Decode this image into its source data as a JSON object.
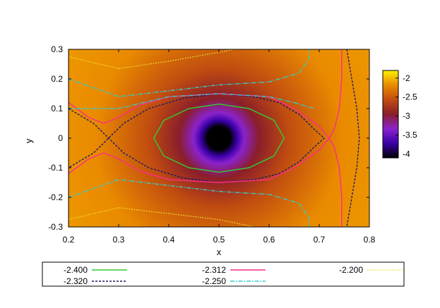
{
  "chart_data": {
    "type": "heatmap",
    "title": "",
    "xlabel": "x",
    "ylabel": "y",
    "xlim": [
      0.2,
      0.8
    ],
    "ylim": [
      -0.3,
      0.3
    ],
    "x_ticks": [
      "0.2",
      "0.3",
      "0.4",
      "0.5",
      "0.6",
      "0.7",
      "0.8"
    ],
    "y_ticks": [
      "0.3",
      "0.2",
      "0.1",
      "0",
      "-0.1",
      "-0.2",
      "-0.3"
    ],
    "colorbar": {
      "range": [
        -4.1,
        -1.8
      ],
      "ticks": [
        "-2",
        "-2.5",
        "-3",
        "-3.5",
        "-4"
      ],
      "colors": [
        "#fff200",
        "#e98a00",
        "#c04c10",
        "#8a1e2a",
        "#8a22cc",
        "#3a00a8",
        "#000000"
      ]
    },
    "field_center": {
      "x": 0.5,
      "y": 0.0
    },
    "legend": {
      "placement": "below",
      "entries": [
        {
          "label": "-2.400",
          "color": "#33cc33",
          "style": "solid"
        },
        {
          "label": "-2.320",
          "color": "#1a1a66",
          "style": "dashed"
        },
        {
          "label": "-2.312",
          "color": "#ff2d88",
          "style": "solid"
        },
        {
          "label": "-2.250",
          "color": "#2fd0cc",
          "style": "dash-dot"
        },
        {
          "label": "-2.200",
          "color": "#f2e22e",
          "style": "dotted"
        }
      ]
    },
    "series": [
      {
        "name": "-2.400",
        "closed": true,
        "points": [
          [
            0.37,
            0.0
          ],
          [
            0.39,
            0.06
          ],
          [
            0.44,
            0.1
          ],
          [
            0.5,
            0.115
          ],
          [
            0.56,
            0.1
          ],
          [
            0.61,
            0.06
          ],
          [
            0.63,
            0.0
          ],
          [
            0.61,
            -0.06
          ],
          [
            0.56,
            -0.1
          ],
          [
            0.5,
            -0.115
          ],
          [
            0.44,
            -0.1
          ],
          [
            0.39,
            -0.06
          ]
        ]
      },
      {
        "name": "-2.320",
        "closed": false,
        "points": [
          [
            0.2,
            0.1
          ],
          [
            0.25,
            0.05
          ],
          [
            0.28,
            0.0
          ],
          [
            0.31,
            -0.05
          ],
          [
            0.36,
            -0.1
          ],
          [
            0.43,
            -0.135
          ],
          [
            0.5,
            -0.15
          ],
          [
            0.57,
            -0.14
          ],
          [
            0.62,
            -0.12
          ],
          [
            0.66,
            -0.08
          ],
          [
            0.69,
            -0.03
          ],
          [
            0.71,
            0.0
          ],
          [
            0.69,
            0.03
          ],
          [
            0.66,
            0.08
          ],
          [
            0.62,
            0.12
          ],
          [
            0.57,
            0.14
          ],
          [
            0.5,
            0.15
          ],
          [
            0.43,
            0.135
          ],
          [
            0.36,
            0.1
          ],
          [
            0.31,
            0.05
          ],
          [
            0.28,
            0.0
          ],
          [
            0.25,
            -0.05
          ],
          [
            0.2,
            -0.1
          ]
        ]
      },
      {
        "name": "-2.320",
        "closed": false,
        "points": [
          [
            0.755,
            0.3
          ],
          [
            0.765,
            0.2
          ],
          [
            0.775,
            0.1
          ],
          [
            0.78,
            0.0
          ],
          [
            0.775,
            -0.1
          ],
          [
            0.765,
            -0.2
          ],
          [
            0.755,
            -0.3
          ]
        ]
      },
      {
        "name": "-2.312",
        "closed": false,
        "points": [
          [
            0.2,
            0.12
          ],
          [
            0.24,
            0.07
          ],
          [
            0.27,
            0.05
          ],
          [
            0.3,
            0.07
          ],
          [
            0.34,
            0.11
          ],
          [
            0.4,
            0.14
          ],
          [
            0.5,
            0.15
          ],
          [
            0.6,
            0.14
          ],
          [
            0.65,
            0.1
          ],
          [
            0.7,
            0.04
          ],
          [
            0.72,
            0.0
          ],
          [
            0.7,
            -0.04
          ],
          [
            0.65,
            -0.1
          ],
          [
            0.6,
            -0.14
          ],
          [
            0.5,
            -0.15
          ],
          [
            0.4,
            -0.14
          ],
          [
            0.34,
            -0.11
          ],
          [
            0.3,
            -0.07
          ],
          [
            0.27,
            -0.05
          ],
          [
            0.24,
            -0.07
          ],
          [
            0.2,
            -0.12
          ]
        ]
      },
      {
        "name": "-2.312",
        "closed": false,
        "points": [
          [
            0.745,
            0.3
          ],
          [
            0.745,
            0.2
          ],
          [
            0.74,
            0.1
          ],
          [
            0.73,
            0.03
          ],
          [
            0.72,
            0.0
          ],
          [
            0.73,
            -0.03
          ],
          [
            0.74,
            -0.1
          ],
          [
            0.745,
            -0.2
          ],
          [
            0.745,
            -0.3
          ]
        ]
      },
      {
        "name": "-2.250",
        "closed": false,
        "points": [
          [
            0.2,
            0.1
          ],
          [
            0.25,
            0.1
          ],
          [
            0.3,
            0.1
          ],
          [
            0.35,
            0.12
          ],
          [
            0.4,
            0.14
          ],
          [
            0.5,
            0.15
          ],
          [
            0.6,
            0.14
          ],
          [
            0.65,
            0.12
          ],
          [
            0.69,
            0.1
          ]
        ]
      },
      {
        "name": "-2.250",
        "closed": false,
        "points": [
          [
            0.2,
            0.2
          ],
          [
            0.25,
            0.17
          ],
          [
            0.3,
            0.14
          ],
          [
            0.4,
            0.16
          ],
          [
            0.5,
            0.18
          ],
          [
            0.6,
            0.19
          ],
          [
            0.66,
            0.22
          ],
          [
            0.68,
            0.27
          ],
          [
            0.68,
            0.3
          ]
        ]
      },
      {
        "name": "-2.250",
        "closed": false,
        "points": [
          [
            0.2,
            -0.2
          ],
          [
            0.25,
            -0.17
          ],
          [
            0.3,
            -0.14
          ],
          [
            0.4,
            -0.16
          ],
          [
            0.5,
            -0.18
          ],
          [
            0.6,
            -0.19
          ],
          [
            0.66,
            -0.22
          ],
          [
            0.68,
            -0.27
          ],
          [
            0.68,
            -0.3
          ]
        ]
      },
      {
        "name": "-2.200",
        "closed": false,
        "points": [
          [
            0.2,
            0.275
          ],
          [
            0.3,
            0.235
          ],
          [
            0.4,
            0.26
          ],
          [
            0.5,
            0.29
          ],
          [
            0.53,
            0.3
          ]
        ]
      },
      {
        "name": "-2.200",
        "closed": false,
        "points": [
          [
            0.2,
            -0.275
          ],
          [
            0.3,
            -0.235
          ],
          [
            0.4,
            -0.255
          ],
          [
            0.5,
            -0.275
          ],
          [
            0.57,
            -0.3
          ]
        ]
      }
    ]
  }
}
